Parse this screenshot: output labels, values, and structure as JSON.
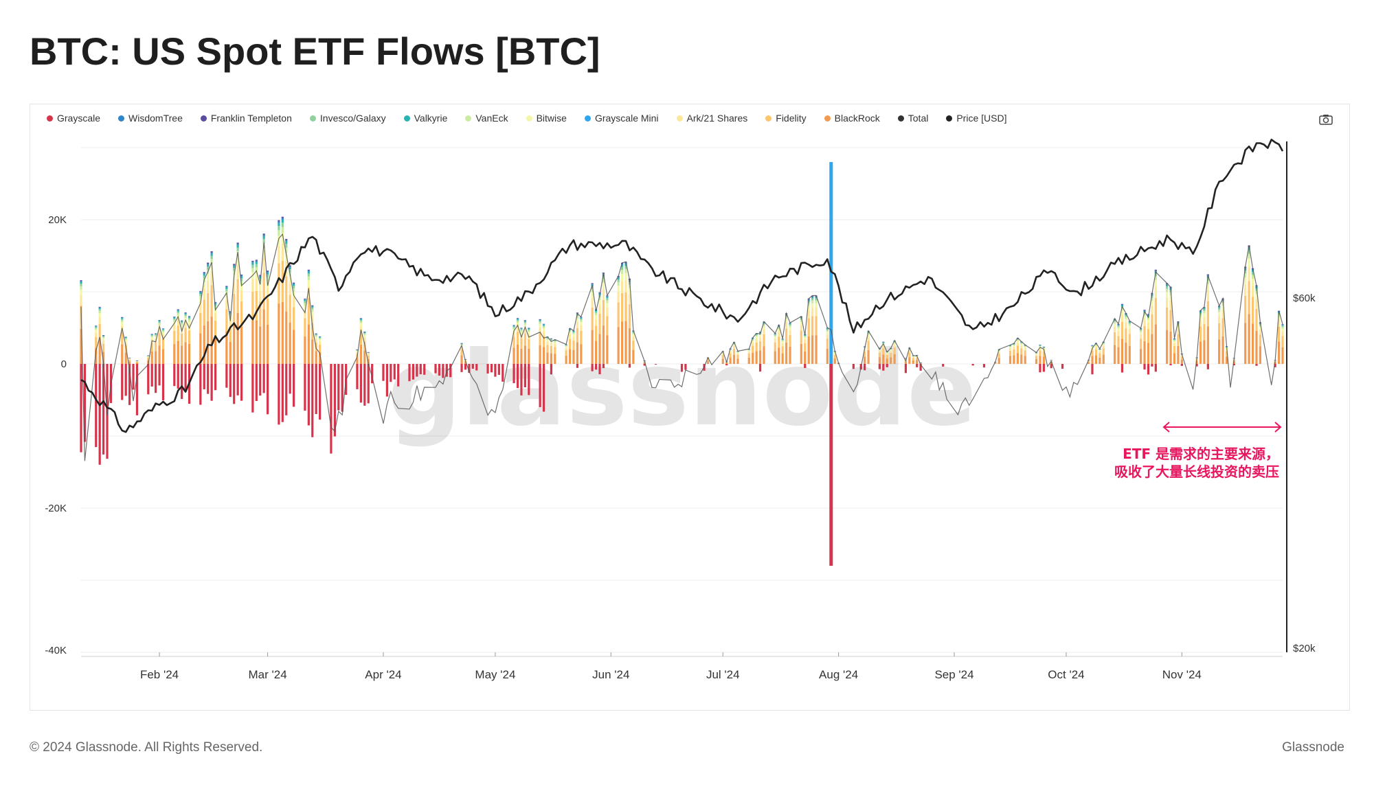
{
  "title": "BTC: US Spot ETF Flows [BTC]",
  "footer": {
    "copyright": "© 2024 Glassnode. All Rights Reserved.",
    "brand": "Glassnode"
  },
  "watermark": "glassnode",
  "legend": [
    {
      "name": "Grayscale",
      "color": "#d5344b"
    },
    {
      "name": "WisdomTree",
      "color": "#2f86c8"
    },
    {
      "name": "Franklin Templeton",
      "color": "#5b4ca0"
    },
    {
      "name": "Invesco/Galaxy",
      "color": "#8fd19e"
    },
    {
      "name": "Valkyrie",
      "color": "#2bb3b0"
    },
    {
      "name": "VanEck",
      "color": "#c9eca0"
    },
    {
      "name": "Bitwise",
      "color": "#f3f7a8"
    },
    {
      "name": "Grayscale Mini",
      "color": "#2ea7f0"
    },
    {
      "name": "Ark/21 Shares",
      "color": "#fde79a"
    },
    {
      "name": "Fidelity",
      "color": "#fcc56e"
    },
    {
      "name": "BlackRock",
      "color": "#f29a4e"
    },
    {
      "name": "Total",
      "color": "#333333"
    },
    {
      "name": "Price [USD]",
      "color": "#222222"
    }
  ],
  "annotation": {
    "line1": "ETF 是需求的主要来源，",
    "line2": "吸收了大量长线投资的卖压",
    "color": "#e8155f"
  },
  "chart_data": {
    "type": "bar",
    "title": "BTC: US Spot ETF Flows [BTC]",
    "y_left": {
      "ticks": [
        "20K",
        "0",
        "-20K",
        "-40K"
      ],
      "range": [
        -40000,
        30000
      ]
    },
    "y_right": {
      "ticks": [
        "$60k",
        "$20k"
      ],
      "scale": "log",
      "range": [
        20000,
        100000
      ]
    },
    "x_ticks": [
      "Feb '24",
      "Mar '24",
      "Apr '24",
      "May '24",
      "Jun '24",
      "Jul '24",
      "Aug '24",
      "Sep '24",
      "Oct '24",
      "Nov '24"
    ],
    "x_range": [
      "2024-01-11",
      "2024-11-28"
    ],
    "grid": true,
    "legend_position": "top-left",
    "total_flow_key_points": [
      [
        "2024-01-11",
        8000
      ],
      [
        "2024-01-12",
        -10000
      ],
      [
        "2024-01-16",
        6000
      ],
      [
        "2024-01-18",
        -6000
      ],
      [
        "2024-01-22",
        5000
      ],
      [
        "2024-01-25",
        -4000
      ],
      [
        "2024-02-01",
        4500
      ],
      [
        "2024-02-08",
        7000
      ],
      [
        "2024-02-13",
        12000
      ],
      [
        "2024-02-20",
        10000
      ],
      [
        "2024-02-28",
        14000
      ],
      [
        "2024-03-05",
        13000
      ],
      [
        "2024-03-12",
        9000
      ],
      [
        "2024-03-19",
        -9000
      ],
      [
        "2024-03-26",
        4000
      ],
      [
        "2024-04-01",
        -6000
      ],
      [
        "2024-04-15",
        -3000
      ],
      [
        "2024-04-22",
        2000
      ],
      [
        "2024-05-01",
        -7000
      ],
      [
        "2024-05-06",
        4000
      ],
      [
        "2024-05-20",
        3000
      ],
      [
        "2024-06-04",
        17000
      ],
      [
        "2024-06-07",
        5000
      ],
      [
        "2024-06-12",
        -3000
      ],
      [
        "2024-06-20",
        -2000
      ],
      [
        "2024-07-01",
        1000
      ],
      [
        "2024-07-15",
        5000
      ],
      [
        "2024-07-22",
        6000
      ],
      [
        "2024-07-29",
        8000
      ],
      [
        "2024-08-02",
        -2000
      ],
      [
        "2024-08-05",
        -4000
      ],
      [
        "2024-08-09",
        4000
      ],
      [
        "2024-08-20",
        1000
      ],
      [
        "2024-09-03",
        -5500
      ],
      [
        "2024-09-16",
        3000
      ],
      [
        "2024-09-24",
        2500
      ],
      [
        "2024-10-01",
        -4000
      ],
      [
        "2024-10-08",
        1500
      ],
      [
        "2024-10-15",
        6000
      ],
      [
        "2024-10-28",
        10000
      ],
      [
        "2024-11-04",
        -3000
      ],
      [
        "2024-11-07",
        12000
      ],
      [
        "2024-11-11",
        14000
      ],
      [
        "2024-11-14",
        -5000
      ],
      [
        "2024-11-18",
        16000
      ],
      [
        "2024-11-21",
        8000
      ],
      [
        "2024-11-25",
        -4000
      ],
      [
        "2024-11-28",
        10000
      ]
    ],
    "grayscale_outflow_key_points": [
      [
        "2024-01-11",
        -13000
      ],
      [
        "2024-01-12",
        -15000
      ],
      [
        "2024-01-16",
        -12000
      ],
      [
        "2024-01-17",
        -15000
      ],
      [
        "2024-01-18",
        -12000
      ],
      [
        "2024-01-19",
        -9000
      ],
      [
        "2024-01-22",
        -7000
      ],
      [
        "2024-02-01",
        -4000
      ],
      [
        "2024-02-27",
        -6000
      ],
      [
        "2024-03-05",
        -7000
      ],
      [
        "2024-03-12",
        -8000
      ],
      [
        "2024-03-18",
        -10000
      ],
      [
        "2024-03-21",
        -6000
      ],
      [
        "2024-04-02",
        -4000
      ],
      [
        "2024-04-08",
        -3000
      ],
      [
        "2024-04-23",
        -1000
      ],
      [
        "2024-05-01",
        -1500
      ],
      [
        "2024-07-30",
        -28000
      ]
    ],
    "grayscale_mini_spike": {
      "date": "2024-07-30",
      "value": 28000
    },
    "price_key_points_usd": [
      [
        "2024-01-11",
        46500
      ],
      [
        "2024-01-23",
        39500
      ],
      [
        "2024-02-01",
        43000
      ],
      [
        "2024-02-08",
        45000
      ],
      [
        "2024-02-15",
        52000
      ],
      [
        "2024-02-27",
        57000
      ],
      [
        "2024-03-05",
        64000
      ],
      [
        "2024-03-13",
        73000
      ],
      [
        "2024-03-20",
        62000
      ],
      [
        "2024-03-26",
        70000
      ],
      [
        "2024-04-01",
        69500
      ],
      [
        "2024-04-13",
        64000
      ],
      [
        "2024-04-24",
        64000
      ],
      [
        "2024-05-01",
        57000
      ],
      [
        "2024-05-10",
        61000
      ],
      [
        "2024-05-21",
        71000
      ],
      [
        "2024-06-05",
        71000
      ],
      [
        "2024-06-11",
        66000
      ],
      [
        "2024-06-24",
        60000
      ],
      [
        "2024-07-05",
        56000
      ],
      [
        "2024-07-15",
        64000
      ],
      [
        "2024-07-29",
        68000
      ],
      [
        "2024-08-05",
        54000
      ],
      [
        "2024-08-12",
        59000
      ],
      [
        "2024-08-25",
        64000
      ],
      [
        "2024-09-06",
        53900
      ],
      [
        "2024-09-16",
        58000
      ],
      [
        "2024-09-27",
        66000
      ],
      [
        "2024-10-03",
        60500
      ],
      [
        "2024-10-15",
        67000
      ],
      [
        "2024-10-29",
        72500
      ],
      [
        "2024-11-04",
        68500
      ],
      [
        "2024-11-12",
        88000
      ],
      [
        "2024-11-22",
        98000
      ],
      [
        "2024-11-28",
        96000
      ]
    ]
  }
}
